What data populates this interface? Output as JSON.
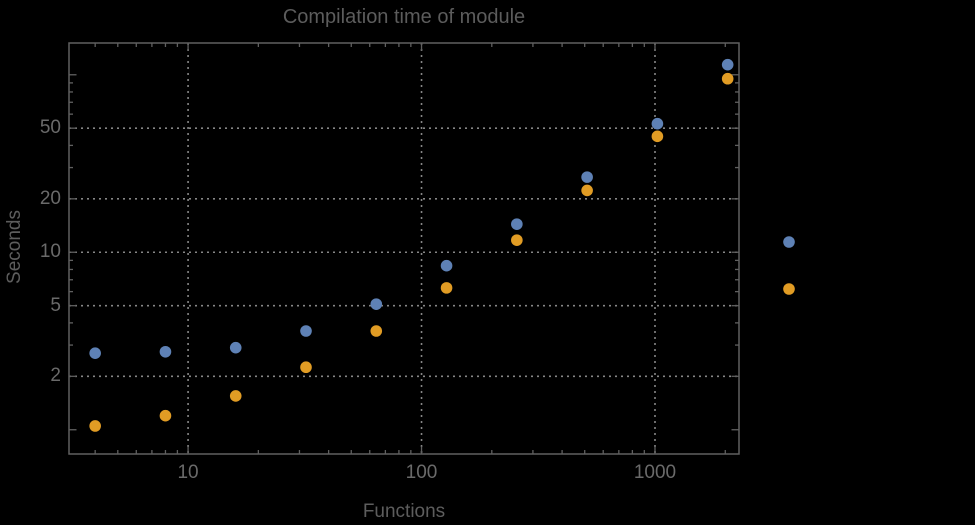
{
  "chart_data": {
    "type": "scatter",
    "title": "Compilation time of module",
    "xlabel": "Functions",
    "ylabel": "Seconds",
    "x_scale": "log",
    "y_scale": "log",
    "x_range": [
      3.09,
      2290
    ],
    "y_range": [
      0.73,
      151
    ],
    "x_ticks": [
      10,
      100,
      1000
    ],
    "y_ticks": [
      2,
      5,
      10,
      20,
      50
    ],
    "y_unlabeled_major_ticks": [
      1,
      100
    ],
    "grid": "dotted-at-major-ticks",
    "x": [
      4,
      8,
      16,
      32,
      64,
      128,
      256,
      512,
      1024,
      2048
    ],
    "series": [
      {
        "name": "series-1-blue",
        "color": "#5E81B5",
        "values": [
          2.7,
          2.75,
          2.9,
          3.6,
          5.1,
          8.4,
          14.4,
          26.5,
          53,
          114
        ]
      },
      {
        "name": "series-2-orange",
        "color": "#E19C24",
        "values": [
          1.05,
          1.2,
          1.55,
          2.25,
          3.6,
          6.3,
          11.7,
          22.3,
          45,
          95
        ]
      }
    ],
    "legend": {
      "position": "right-of-plot",
      "labels_visible": false
    }
  },
  "styles": {
    "background": "#000000",
    "title_color": "#5c5c5c",
    "axis_label_color": "#5d5d5d",
    "tick_label_color": "#6a6a6a",
    "frame_color": "#606060",
    "grid_color": "#868686"
  }
}
